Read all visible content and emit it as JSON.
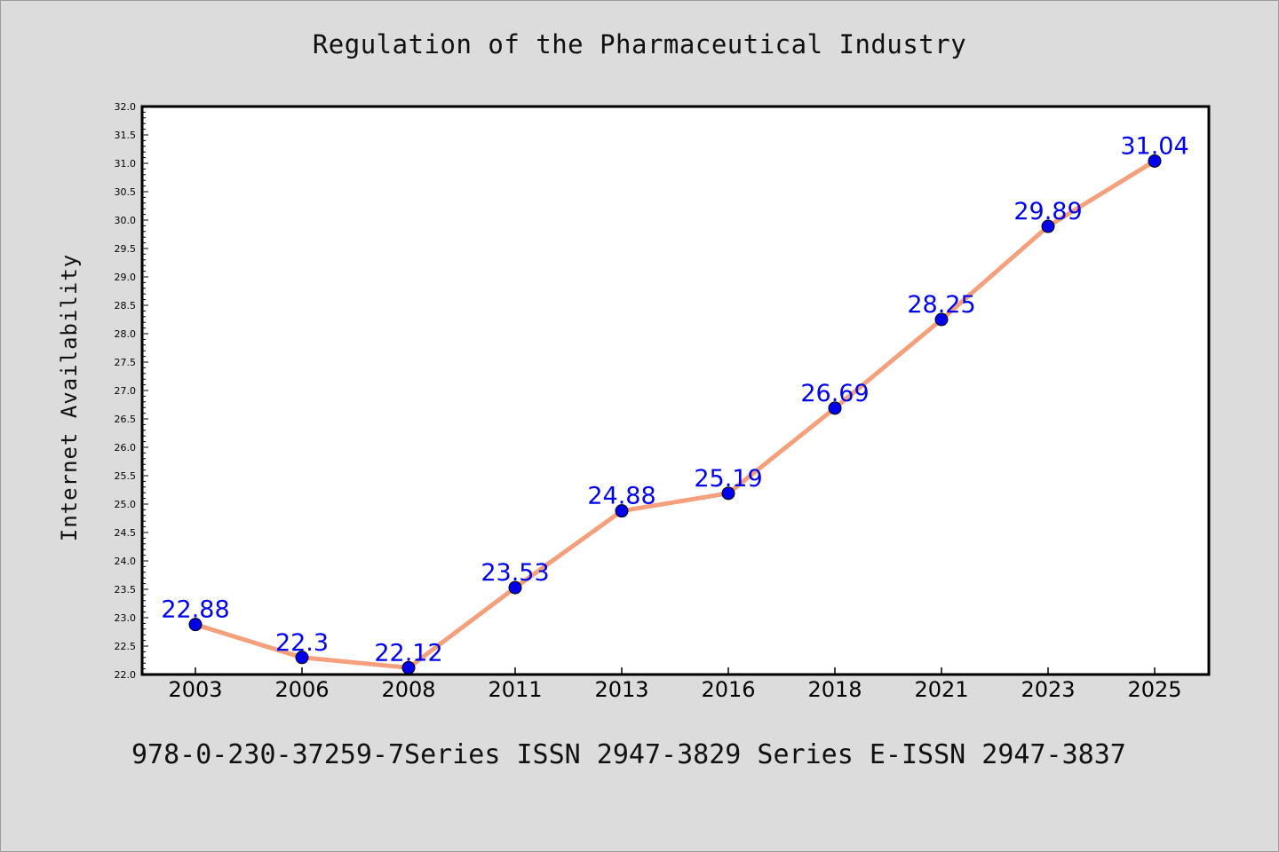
{
  "title": "Regulation of the Pharmaceutical Industry",
  "footer": "978-0-230-37259-7Series ISSN 2947-3829 Series E-ISSN 2947-3837",
  "chart_data": {
    "type": "line",
    "title": "Regulation of the Pharmaceutical Industry",
    "xlabel": "",
    "ylabel": "Internet Availability",
    "categories": [
      "2003",
      "2006",
      "2008",
      "2011",
      "2013",
      "2016",
      "2018",
      "2021",
      "2023",
      "2025"
    ],
    "series": [
      {
        "values": [
          22.88,
          22.3,
          22.12,
          23.53,
          24.88,
          25.19,
          26.69,
          28.25,
          29.89,
          31.04
        ],
        "labels": [
          "22.88",
          "22.3",
          "22.12",
          "23.53",
          "24.88",
          "25.19",
          "26.69",
          "28.25",
          "29.89",
          "31.04"
        ],
        "line_color": "#f4a07c",
        "marker_color": "#0000ee"
      }
    ],
    "ylim": [
      22.0,
      32.0
    ],
    "ytick_labels": [
      "22.0",
      "22.5",
      "23.0",
      "23.5",
      "24.0",
      "24.5",
      "25.0",
      "25.5",
      "26.0",
      "26.5",
      "27.0",
      "27.5",
      "28.0",
      "28.5",
      "29.0",
      "29.5",
      "30.0",
      "30.5",
      "31.0",
      "31.5",
      "32.0"
    ],
    "grid": false,
    "legend": "none",
    "colors": {
      "background": "#dcdcdc",
      "plot_background": "#ffffff",
      "line": "#f4a07c",
      "marker": "#0000ee",
      "data_label": "#0000ee"
    }
  }
}
